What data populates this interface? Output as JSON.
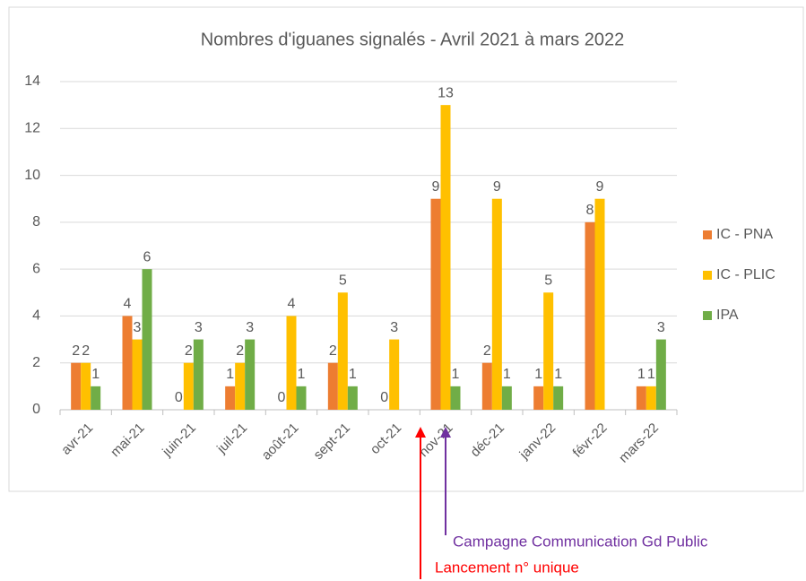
{
  "chart_data": {
    "type": "bar",
    "title": "Nombres d'iguanes signalés - Avril 2021 à mars 2022",
    "categories": [
      "avr-21",
      "mai-21",
      "juin-21",
      "juil-21",
      "août-21",
      "sept-21",
      "oct-21",
      "nov-21",
      "déc-21",
      "janv-22",
      "févr-22",
      "mars-22"
    ],
    "series": [
      {
        "name": "IC - PNA",
        "color": "#ED7D31",
        "values": [
          2,
          4,
          0,
          1,
          0,
          2,
          0,
          9,
          2,
          1,
          8,
          1
        ]
      },
      {
        "name": "IC - PLIC",
        "color": "#FFC000",
        "values": [
          2,
          3,
          2,
          2,
          4,
          5,
          3,
          13,
          9,
          5,
          9,
          1
        ]
      },
      {
        "name": "IPA",
        "color": "#70AD47",
        "values": [
          1,
          6,
          3,
          3,
          1,
          1,
          null,
          1,
          1,
          1,
          null,
          3
        ]
      }
    ],
    "ylim": [
      0,
      14
    ],
    "yticks": [
      0,
      2,
      4,
      6,
      8,
      10,
      12,
      14
    ],
    "grid": true,
    "legend": "right",
    "annotations": [
      {
        "text": "Campagne Communication Gd Public",
        "color": "#7030A0"
      },
      {
        "text": "Lancement n° unique",
        "color": "#FF0000"
      }
    ]
  }
}
